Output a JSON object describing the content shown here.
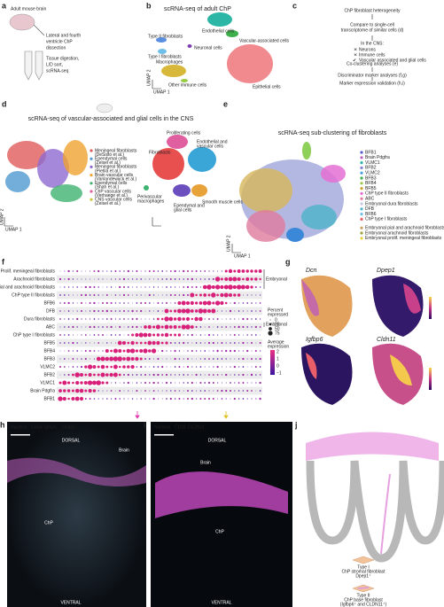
{
  "panels": {
    "a": {
      "letter": "a",
      "title": "Adult mouse brain",
      "lines": [
        "Lateral and fourth",
        "ventricle ChP",
        "dissection",
        "Tissue digestion,",
        "L/D sort,",
        "scRNA-seq"
      ]
    },
    "b": {
      "letter": "b",
      "title": "scRNA-seq of adult ChP",
      "clusters": [
        "Endothelial cells",
        "Vascular-associated cells",
        "Type II fibroblasts",
        "Neuronal cells",
        "Type I fibroblasts",
        "Macrophages",
        "Other immune cells",
        "Epithelial cells"
      ],
      "x_label": "UMAP 1",
      "y_label": "UMAP 2"
    },
    "c": {
      "letter": "c",
      "steps": [
        "ChP fibroblast heterogeneity",
        "Compare to single-cell",
        "transcriptome of similar cells (d)",
        "In the CNS:"
      ],
      "excluded": [
        "Neurons",
        "Immune cells"
      ],
      "included": "Vascular associated and glial cells",
      "analyses": [
        "Co-clustering analyses (e)",
        "Discriminator marker analyses (f,g)",
        "Marker expression validation (h,i)"
      ]
    },
    "d": {
      "letter": "d",
      "title": "scRNA-seq of vascular-associated and glial cells in the CNS",
      "legend": [
        "Meningeal fibroblasts",
        "(DeSisto et al.)",
        "Ependymal cells",
        "(Zeisel et al.)",
        "Meningeal fibroblasts",
        "(Pietilä et al.)",
        "Brain vascular cells",
        "(Vanlandewijck et al.)",
        "Ependymal cells",
        "(Shah et al.)",
        "ChP vascular cells",
        "(Verhaege et al.)",
        "CNS vascular cells",
        "(Zeisel et al.)"
      ],
      "clusters": [
        "Proliferating cells",
        "Fibroblasts",
        "Endothelial and",
        "vascular cells",
        "Ependymal and",
        "glial cells",
        "Smooth muscle cells",
        "Perivascular",
        "macrophages"
      ],
      "x_label": "UMAP 1",
      "y_label": "UMAP 2"
    },
    "e": {
      "letter": "e",
      "title": "scRNA-seq sub-clustering of fibroblasts",
      "legend": [
        "BFB1",
        "Brain Pdgfra",
        "VLMC1",
        "BFB2",
        "VLMC2",
        "BFB3",
        "BFB4",
        "BFB5",
        "ChP type II fibroblasts",
        "ABC",
        "Embryonal dura fibroblasts",
        "DFB",
        "BFB6",
        "ChP type I fibroblasts",
        "Embryonal pial and arachnoid fibroblasts",
        "Embryonal arachnoid fibroblasts",
        "Embryonal prolif. meningeal fibroblasts"
      ],
      "x_label": "UMAP 1",
      "y_label": "UMAP 2"
    },
    "f": {
      "letter": "f",
      "rows": [
        "Prolif. meningeal fibroblasts",
        "Arachnoid fibroblasts",
        "Pial and arachnoid fibroblasts",
        "ChP type II fibroblasts",
        "BFB6",
        "DFB",
        "Dura fibroblasts",
        "ABC",
        "ChP type I fibroblasts",
        "BFB5",
        "BFB4",
        "BFB3",
        "VLMC2",
        "BFB2",
        "VLMC1",
        "Brain Pdgfra",
        "BFB1"
      ],
      "group_labels": [
        "Embryonal",
        "Embryonal"
      ],
      "size_title": [
        "Percent",
        "expressed"
      ],
      "size_ticks": [
        "0",
        "25",
        "50",
        "75"
      ],
      "color_title": [
        "Average",
        "expression"
      ],
      "color_ticks": [
        "2",
        "1",
        "0",
        "−1"
      ]
    },
    "g": {
      "letter": "g",
      "genes": [
        "Dcn",
        "Dpep1",
        "Igfbp6",
        "Cldn11"
      ]
    },
    "h": {
      "letter": "h",
      "stains": [
        "Nucleus",
        "ConA",
        "Igfbp6",
        "Dpep1"
      ],
      "labels": [
        "DORSAL",
        "Brain",
        "ChP",
        "VENTRAL"
      ]
    },
    "i": {
      "letter": "i",
      "stains": [
        "Nucleus",
        "CD31",
        "CLDN11"
      ],
      "labels": [
        "DORSAL",
        "Brain",
        "ChP",
        "VENTRAL"
      ]
    },
    "j": {
      "letter": "j",
      "type1": [
        "Type I",
        "ChP stromal fibroblast",
        "Dpep1⁺"
      ],
      "type2": [
        "Type II",
        "ChP base fibroblast",
        "(Igfbp6⁺ and CLDN11⁺)"
      ]
    }
  }
}
